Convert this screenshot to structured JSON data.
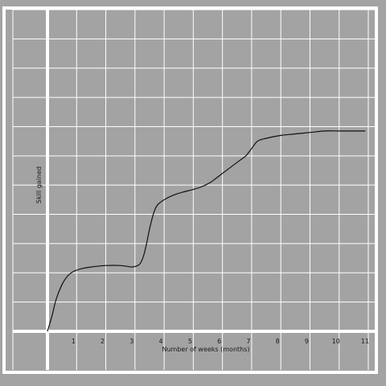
{
  "chart_data": {
    "type": "line",
    "title": "",
    "xlabel": "Number of weeks (months)",
    "ylabel": "Skill gained",
    "xlim": [
      0,
      11
    ],
    "ylim": [
      0,
      11
    ],
    "x_ticks": [
      1,
      2,
      3,
      4,
      5,
      6,
      7,
      8,
      9,
      10,
      11
    ],
    "x_tick_labels": [
      "1",
      "2",
      "3",
      "4",
      "5",
      "6",
      "7",
      "8",
      "9",
      "10",
      "11"
    ],
    "grid": true,
    "legend": "none",
    "series": [
      {
        "x": [
          0,
          0.15,
          0.3,
          0.5,
          0.7,
          0.9,
          1.2,
          1.5,
          2.0,
          2.5,
          2.9,
          3.1,
          3.2,
          3.3,
          3.4,
          3.5,
          3.6,
          3.7,
          3.8,
          4.0,
          4.3,
          4.6,
          5.0,
          5.3,
          5.6,
          5.8,
          6.0,
          6.2,
          6.4,
          6.6,
          6.8,
          7.0,
          7.2,
          7.5,
          8.0,
          8.5,
          9.0,
          9.5,
          10.0,
          10.5,
          10.9
        ],
        "y": [
          0,
          0.5,
          1.1,
          1.6,
          1.9,
          2.05,
          2.15,
          2.2,
          2.25,
          2.25,
          2.2,
          2.25,
          2.35,
          2.6,
          3.0,
          3.5,
          3.9,
          4.2,
          4.35,
          4.5,
          4.65,
          4.75,
          4.85,
          4.95,
          5.1,
          5.25,
          5.4,
          5.55,
          5.7,
          5.85,
          6.0,
          6.25,
          6.5,
          6.6,
          6.7,
          6.75,
          6.8,
          6.85,
          6.85,
          6.85,
          6.85
        ]
      }
    ],
    "colors": {
      "background": "#a3a3a3",
      "grid": "#ffffff",
      "line": "#111111"
    }
  }
}
